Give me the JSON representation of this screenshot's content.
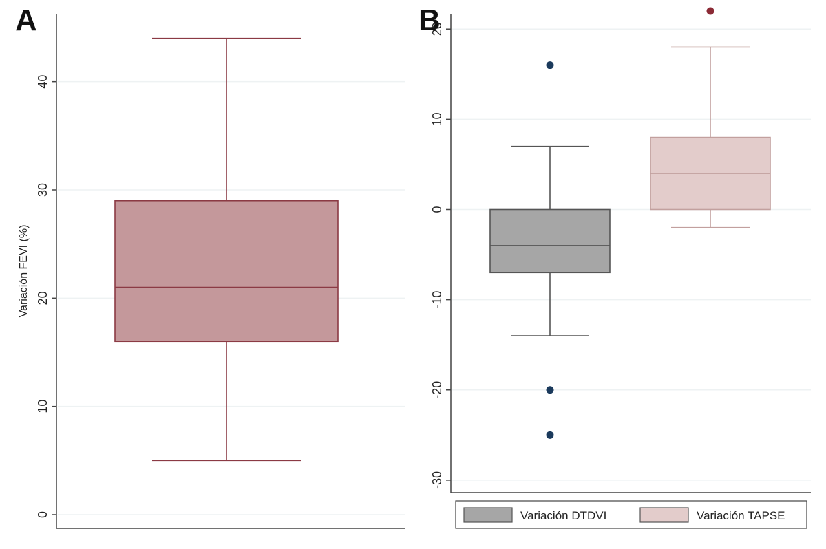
{
  "chart_data": [
    {
      "type": "box",
      "panel_label": "A",
      "ylabel": "Variación FEVI (%)",
      "ylim": [
        0,
        45
      ],
      "yticks": [
        0,
        10,
        20,
        30,
        40
      ],
      "grid": true,
      "boxes": [
        {
          "name": "",
          "whisker_low": 5,
          "q1": 16,
          "median": 21,
          "q3": 29,
          "whisker_high": 44,
          "outliers": [],
          "fill": "#c4989b",
          "stroke": "#8b3a44"
        }
      ]
    },
    {
      "type": "box",
      "panel_label": "B",
      "ylabel": "",
      "ylim": [
        -31,
        22
      ],
      "yticks": [
        -30,
        -20,
        -10,
        0,
        10,
        20
      ],
      "grid": true,
      "legend_position": "bottom",
      "boxes": [
        {
          "name": "Variación DTDVI",
          "whisker_low": -14,
          "q1": -7,
          "median": -4,
          "q3": 0,
          "whisker_high": 7,
          "outliers": [
            16,
            -20,
            -25
          ],
          "fill": "#a6a6a6",
          "stroke": "#555555",
          "outlier_color": "#1b3a5c"
        },
        {
          "name": "Variación TAPSE",
          "whisker_low": -2,
          "q1": 0,
          "median": 4,
          "q3": 8,
          "whisker_high": 18,
          "outliers": [
            22
          ],
          "fill": "#e3cccb",
          "stroke": "#c2a09e",
          "outlier_color": "#8b2a35"
        }
      ]
    }
  ]
}
